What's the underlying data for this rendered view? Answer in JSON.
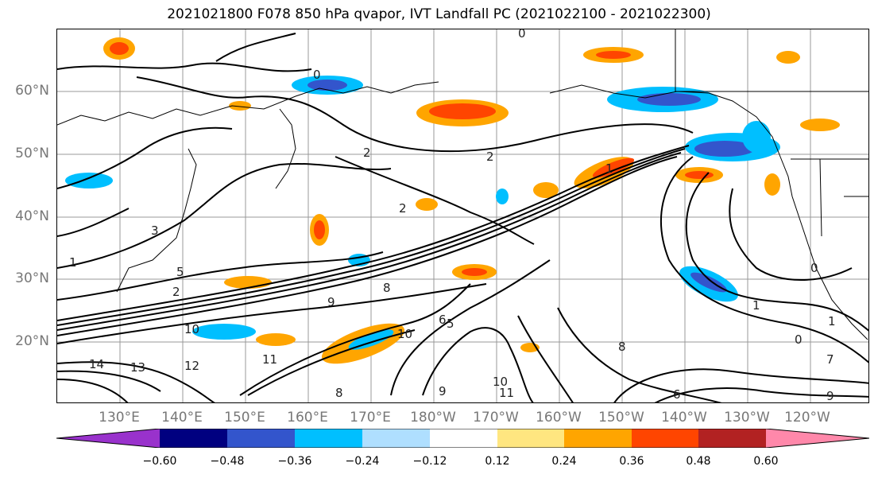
{
  "title": "2021021800 F078 850 hPa qvapor, IVT Landfall PC (2021022100 - 2021022300)",
  "lat_labels": [
    "60°N",
    "50°N",
    "40°N",
    "30°N",
    "20°N"
  ],
  "lon_labels": [
    "130°E",
    "140°E",
    "150°E",
    "160°E",
    "170°E",
    "180°W",
    "170°W",
    "160°W",
    "150°W",
    "140°W",
    "130°W",
    "120°W"
  ],
  "colorbar": {
    "colors": [
      "#9932cc",
      "#000080",
      "#3355cc",
      "#00bfff",
      "#afdfff",
      "#ffffff",
      "#ffe680",
      "#ffa500",
      "#ff4500",
      "#b22222",
      "#ff88aa"
    ],
    "ticks": [
      "−0.60",
      "−0.48",
      "−0.36",
      "−0.24",
      "−0.12",
      "0.12",
      "0.24",
      "0.36",
      "0.48",
      "0.60"
    ]
  },
  "contour_labels": [
    "0",
    "0",
    "2",
    "2",
    "2",
    "3",
    "1",
    "2",
    "5",
    "8",
    "9",
    "10",
    "12",
    "13",
    "14",
    "11",
    "10",
    "6",
    "5",
    "8",
    "9",
    "10",
    "11",
    "6",
    "8",
    "1",
    "1",
    "0",
    "7",
    "0",
    "9",
    "1"
  ]
}
